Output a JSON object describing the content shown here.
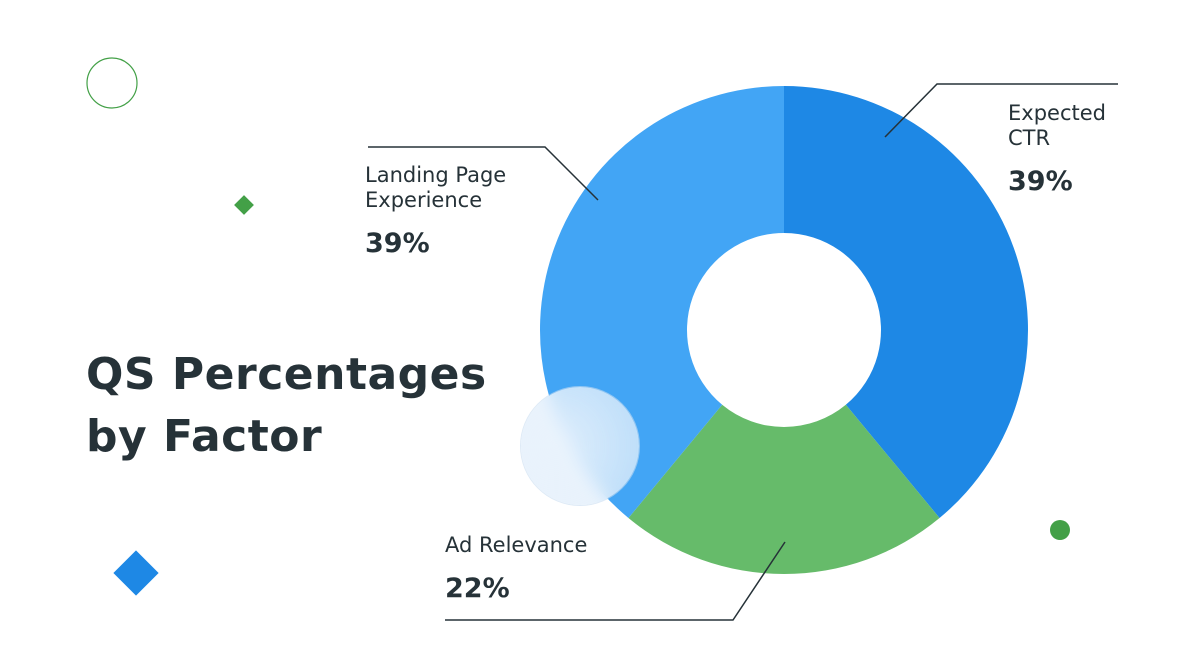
{
  "chart_data": {
    "type": "pie",
    "variant": "donut",
    "title": "QS Percentages by Factor",
    "categories": [
      "Expected CTR",
      "Ad Relevance",
      "Landing Page Experience"
    ],
    "values": [
      39,
      22,
      39
    ],
    "value_labels": [
      "39%",
      "22%",
      "39%"
    ],
    "colors": [
      "#1E88E5",
      "#66BB6A",
      "#42A5F5"
    ],
    "legend": "none"
  },
  "labels": {
    "ctr_line1": "Expected",
    "ctr_line2": "CTR",
    "landing_line1": "Landing Page",
    "landing_line2": "Experience",
    "ad": "Ad Relevance"
  },
  "decor_colors": {
    "green": "#43A047",
    "blue": "#1E88E5"
  }
}
